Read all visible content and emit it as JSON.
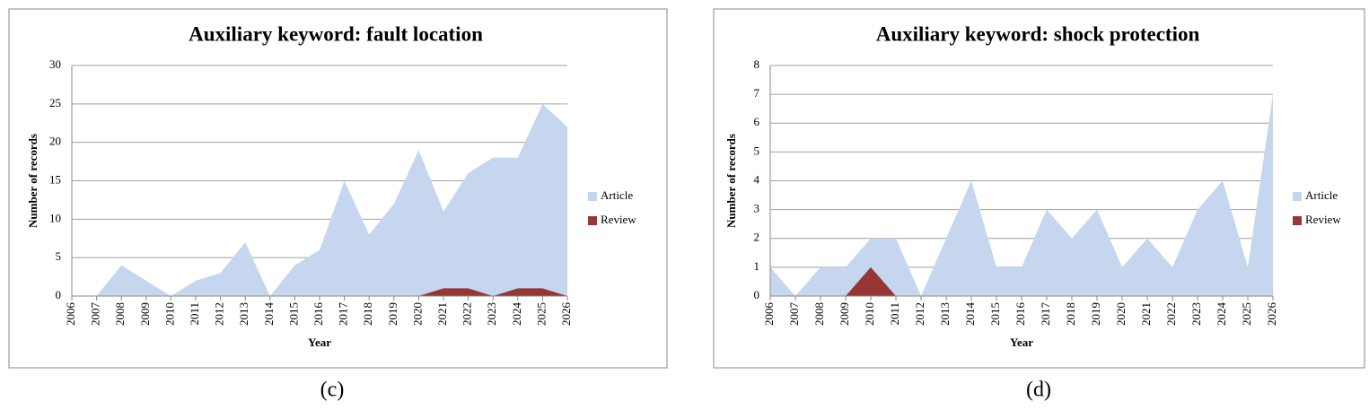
{
  "chart_data": [
    {
      "type": "area",
      "title": "Auxiliary keyword: fault location",
      "caption": "(c)",
      "x_label": "Year",
      "y_label": "Number of records",
      "categories": [
        "2006",
        "2007",
        "2008",
        "2009",
        "2010",
        "2011",
        "2012",
        "2013",
        "2014",
        "2015",
        "2016",
        "2017",
        "2018",
        "2019",
        "2020",
        "2021",
        "2022",
        "2023",
        "2024",
        "2025",
        "2026"
      ],
      "series": [
        {
          "name": "Article",
          "color": "#c6d6ee",
          "values": [
            null,
            0,
            4,
            2,
            0,
            2,
            3,
            7,
            0,
            4,
            6,
            15,
            8,
            12,
            19,
            11,
            16,
            18,
            18,
            25,
            22
          ]
        },
        {
          "name": "Review",
          "color": "#953735",
          "values": [
            null,
            0,
            0,
            0,
            0,
            0,
            0,
            0,
            0,
            0,
            0,
            0,
            0,
            0,
            0,
            1,
            1,
            0,
            1,
            1,
            0
          ]
        }
      ],
      "ylim": [
        0,
        30
      ],
      "yticks": [
        0,
        5,
        10,
        15,
        20,
        25,
        30
      ],
      "grid": true,
      "legend": "right"
    },
    {
      "type": "area",
      "title": "Auxiliary keyword: shock protection",
      "caption": "(d)",
      "x_label": "Year",
      "y_label": "Number of records",
      "categories": [
        "2006",
        "2007",
        "2008",
        "2009",
        "2010",
        "2011",
        "2012",
        "2013",
        "2014",
        "2015",
        "2016",
        "2017",
        "2018",
        "2019",
        "2020",
        "2021",
        "2022",
        "2023",
        "2024",
        "2025",
        "2026"
      ],
      "series": [
        {
          "name": "Article",
          "color": "#c6d6ee",
          "values": [
            1,
            0,
            1,
            1,
            2,
            2,
            0,
            2,
            4,
            1,
            1,
            3,
            2,
            3,
            1,
            2,
            1,
            3,
            4,
            1,
            7
          ]
        },
        {
          "name": "Review",
          "color": "#953735",
          "values": [
            0,
            0,
            0,
            0,
            1,
            0,
            0,
            0,
            0,
            0,
            0,
            0,
            0,
            0,
            0,
            0,
            0,
            0,
            0,
            0,
            0
          ]
        }
      ],
      "ylim": [
        0,
        8
      ],
      "yticks": [
        0,
        1,
        2,
        3,
        4,
        5,
        6,
        7,
        8
      ],
      "grid": true,
      "legend": "right"
    }
  ]
}
